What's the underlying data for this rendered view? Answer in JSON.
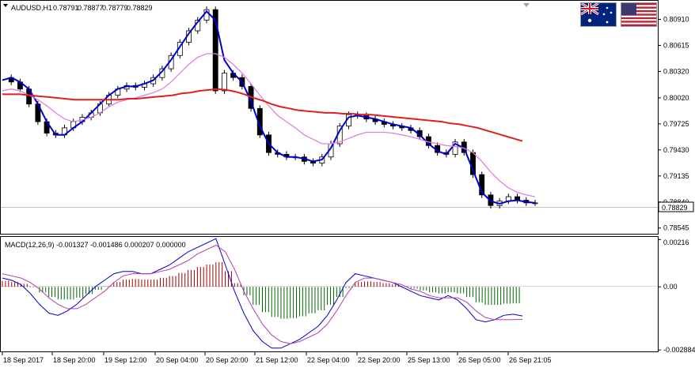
{
  "chart_data": [
    {
      "type": "candlestick",
      "title": "AUDUSD,H1",
      "ohlc_readout": [
        "0.78791",
        "0.78877",
        "0.78779",
        "0.78829"
      ],
      "current_price": "0.78829",
      "y_ticks": [
        "0.80910",
        "0.80615",
        "0.80320",
        "0.80020",
        "0.79725",
        "0.79430",
        "0.79135",
        "0.78840",
        "0.78545"
      ],
      "ylim": [
        0.7848,
        0.8112
      ],
      "x_ticks": [
        "18 Sep 2017",
        "18 Sep 20:00",
        "19 Sep 12:00",
        "20 Sep 04:00",
        "20 Sep 20:00",
        "21 Sep 12:00",
        "22 Sep 04:00",
        "22 Sep 20:00",
        "25 Sep 13:00",
        "26 Sep 05:00",
        "26 Sep 21:05"
      ],
      "series": [
        {
          "name": "Moving Average (fast)",
          "color": "#0000cc",
          "values": [
            0.8022,
            0.8025,
            0.802,
            0.8012,
            0.7995,
            0.7975,
            0.796,
            0.796,
            0.7968,
            0.7975,
            0.7985,
            0.7995,
            0.8005,
            0.8012,
            0.8015,
            0.8015,
            0.8018,
            0.8022,
            0.8032,
            0.8045,
            0.806,
            0.8075,
            0.8088,
            0.81,
            0.809,
            0.8045,
            0.803,
            0.802,
            0.7998,
            0.797,
            0.795,
            0.794,
            0.7935,
            0.7935,
            0.7933,
            0.793,
            0.7932,
            0.7945,
            0.7965,
            0.798,
            0.7982,
            0.798,
            0.7978,
            0.7975,
            0.7972,
            0.797,
            0.7968,
            0.796,
            0.795,
            0.7942,
            0.7938,
            0.795,
            0.7945,
            0.792,
            0.7895,
            0.7885,
            0.7882,
            0.7885,
            0.7886,
            0.7884,
            0.7883
          ]
        },
        {
          "name": "Moving Average (medium)",
          "color": "#e080e0",
          "values": [
            0.801,
            0.8012,
            0.801,
            0.8005,
            0.8,
            0.7993,
            0.7985,
            0.7978,
            0.7975,
            0.7977,
            0.798,
            0.7985,
            0.7992,
            0.7997,
            0.8,
            0.8002,
            0.8005,
            0.8008,
            0.8012,
            0.802,
            0.803,
            0.804,
            0.8048,
            0.8052,
            0.8052,
            0.8048,
            0.804,
            0.803,
            0.8018,
            0.8005,
            0.7993,
            0.7982,
            0.7975,
            0.7968,
            0.796,
            0.7955,
            0.795,
            0.795,
            0.7952,
            0.7956,
            0.796,
            0.7963,
            0.7963,
            0.7963,
            0.7962,
            0.796,
            0.7958,
            0.7955,
            0.7952,
            0.795,
            0.7948,
            0.7947,
            0.7945,
            0.794,
            0.793,
            0.7918,
            0.7908,
            0.79,
            0.7895,
            0.7892,
            0.789
          ]
        },
        {
          "name": "Moving Average (slow)",
          "color": "#e02020",
          "values": [
            0.8006,
            0.8006,
            0.8006,
            0.8005,
            0.8004,
            0.8003,
            0.8002,
            0.8001,
            0.8,
            0.8,
            0.8,
            0.8,
            0.8,
            0.8,
            0.8001,
            0.8001,
            0.8002,
            0.8003,
            0.8004,
            0.8005,
            0.8007,
            0.8008,
            0.801,
            0.8011,
            0.8012,
            0.8011,
            0.8009,
            0.8006,
            0.8002,
            0.7999,
            0.7995,
            0.7992,
            0.799,
            0.7988,
            0.7987,
            0.7986,
            0.7985,
            0.7985,
            0.7984,
            0.7984,
            0.7983,
            0.7983,
            0.7982,
            0.7981,
            0.798,
            0.7979,
            0.7978,
            0.7977,
            0.7976,
            0.7975,
            0.7973,
            0.7972,
            0.797,
            0.7968,
            0.7965,
            0.7962,
            0.7959,
            0.7956,
            0.7953
          ]
        }
      ],
      "candles": {
        "close": [
          0.8025,
          0.802,
          0.8012,
          0.7995,
          0.7975,
          0.7962,
          0.796,
          0.7968,
          0.7975,
          0.798,
          0.7985,
          0.7995,
          0.8005,
          0.8012,
          0.8016,
          0.8014,
          0.8018,
          0.8025,
          0.8035,
          0.805,
          0.8065,
          0.8078,
          0.809,
          0.8102,
          0.801,
          0.803,
          0.8025,
          0.8015,
          0.799,
          0.796,
          0.794,
          0.7938,
          0.7935,
          0.7935,
          0.793,
          0.7928,
          0.7935,
          0.795,
          0.797,
          0.7983,
          0.7982,
          0.7978,
          0.7975,
          0.7972,
          0.797,
          0.7968,
          0.7965,
          0.7958,
          0.7948,
          0.794,
          0.7938,
          0.7952,
          0.794,
          0.7915,
          0.7892,
          0.788,
          0.7885,
          0.789,
          0.7886,
          0.7883,
          0.7883
        ]
      }
    },
    {
      "type": "line",
      "title": "MACD(12,26,9) -0.001327 -0.001486 0.000207 0.000000",
      "y_ticks": [
        "0.00216",
        "0.00",
        "-0.002884"
      ],
      "ylim": [
        -0.00295,
        0.00228
      ],
      "series": [
        {
          "name": "MACD",
          "color": "#0000cc",
          "values": [
            0.0004,
            0.0003,
            0.0001,
            -0.0003,
            -0.0008,
            -0.0012,
            -0.0013,
            -0.0011,
            -0.0008,
            -0.0004,
            0.0,
            0.0003,
            0.0006,
            0.0007,
            0.0007,
            0.0006,
            0.0006,
            0.0008,
            0.001,
            0.0013,
            0.0016,
            0.0018,
            0.002,
            0.0022,
            0.001,
            -0.0002,
            -0.0012,
            -0.002,
            -0.0025,
            -0.0028,
            -0.0028,
            -0.0026,
            -0.0024,
            -0.0021,
            -0.0018,
            -0.0013,
            -0.0006,
            0.0002,
            0.0006,
            0.0005,
            0.0004,
            0.0003,
            0.0002,
            0.0,
            -0.0002,
            -0.0004,
            -0.0005,
            -0.0006,
            -0.0004,
            -0.0006,
            -0.001,
            -0.0015,
            -0.0016,
            -0.0015,
            -0.0013,
            -0.00125,
            -0.00133
          ]
        },
        {
          "name": "Signal",
          "color": "#b040b0",
          "values": [
            0.0006,
            0.0005,
            0.0004,
            0.0002,
            -0.0001,
            -0.0005,
            -0.0008,
            -0.001,
            -0.001,
            -0.0008,
            -0.0005,
            -0.0002,
            0.0002,
            0.0005,
            0.0006,
            0.0006,
            0.0006,
            0.0007,
            0.0008,
            0.001,
            0.0012,
            0.0015,
            0.0017,
            0.0019,
            0.0016,
            0.0008,
            -0.0002,
            -0.001,
            -0.0017,
            -0.0022,
            -0.0025,
            -0.0026,
            -0.0025,
            -0.0023,
            -0.0021,
            -0.0017,
            -0.0011,
            -0.0004,
            0.0002,
            0.0004,
            0.0004,
            0.0003,
            0.0002,
            0.0001,
            -0.0001,
            -0.0002,
            -0.0004,
            -0.0005,
            -0.0005,
            -0.0005,
            -0.0007,
            -0.0011,
            -0.0014,
            -0.0015,
            -0.0015,
            -0.0015,
            -0.00149
          ]
        }
      ]
    }
  ],
  "flags": {
    "base": "AUD",
    "quote": "USD"
  }
}
